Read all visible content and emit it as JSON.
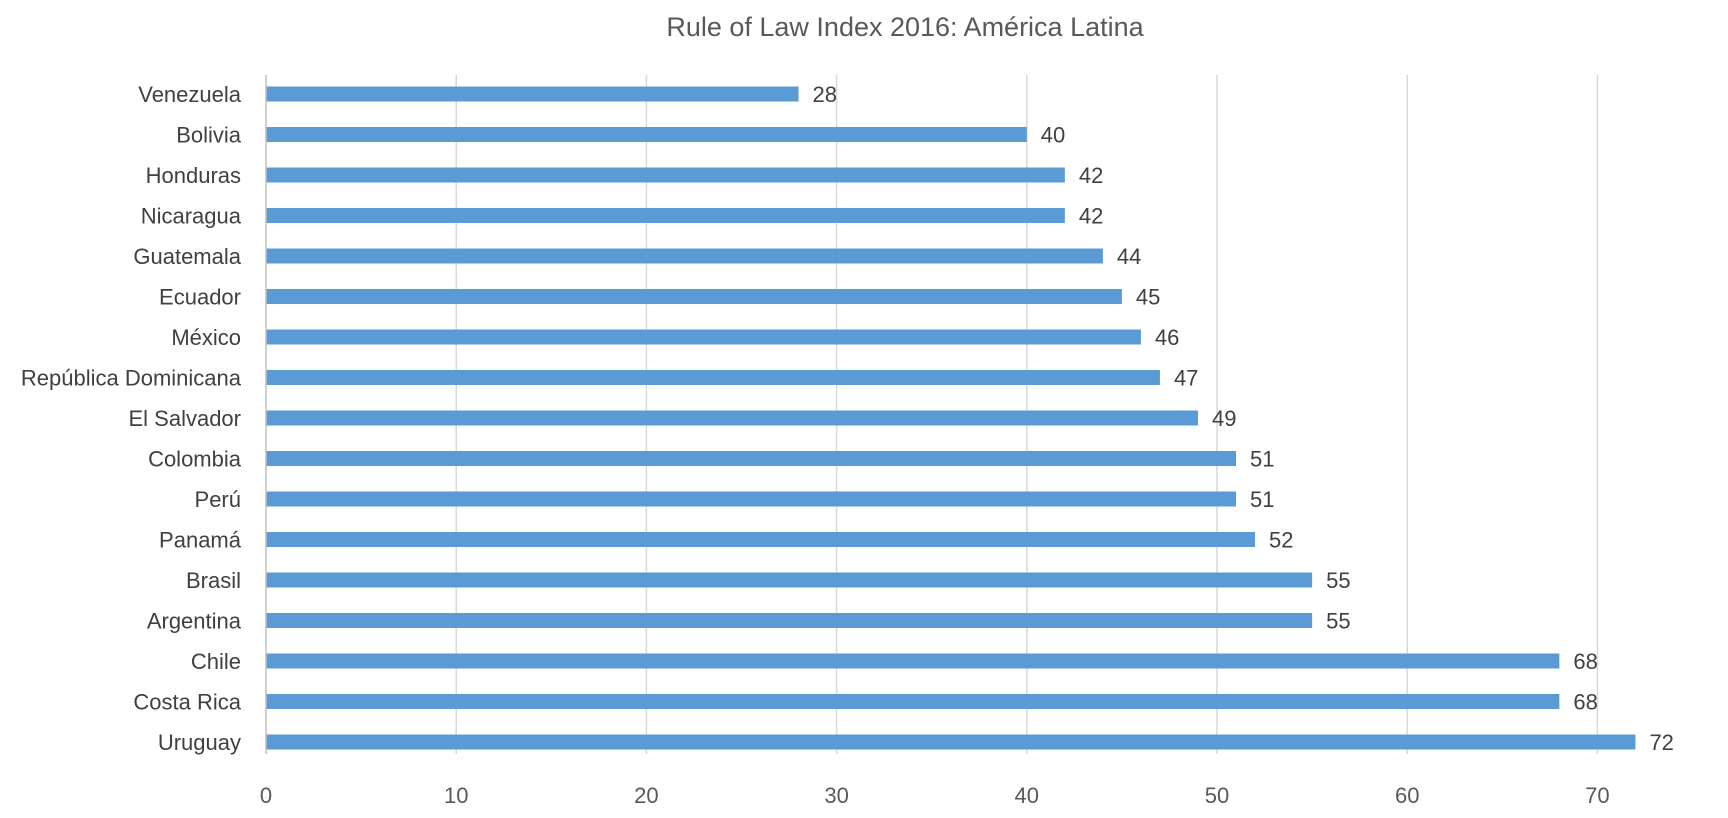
{
  "chart_data": {
    "type": "bar",
    "orientation": "horizontal",
    "title": "Rule of Law Index 2016: América Latina",
    "categories": [
      "Venezuela",
      "Bolivia",
      "Honduras",
      "Nicaragua",
      "Guatemala",
      "Ecuador",
      "México",
      "República Dominicana",
      "El Salvador",
      "Colombia",
      "Perú",
      "Panamá",
      "Brasil",
      "Argentina",
      "Chile",
      "Costa Rica",
      "Uruguay"
    ],
    "values": [
      28,
      40,
      42,
      42,
      44,
      45,
      46,
      47,
      49,
      51,
      51,
      52,
      55,
      55,
      68,
      68,
      72
    ],
    "xlim": [
      0,
      72
    ],
    "x_ticks": [
      0,
      10,
      20,
      30,
      40,
      50,
      60,
      70
    ],
    "xlabel": "",
    "ylabel": "",
    "grid": true,
    "legend": "none",
    "data_labels": true,
    "bar_color": "#5b9bd5"
  }
}
